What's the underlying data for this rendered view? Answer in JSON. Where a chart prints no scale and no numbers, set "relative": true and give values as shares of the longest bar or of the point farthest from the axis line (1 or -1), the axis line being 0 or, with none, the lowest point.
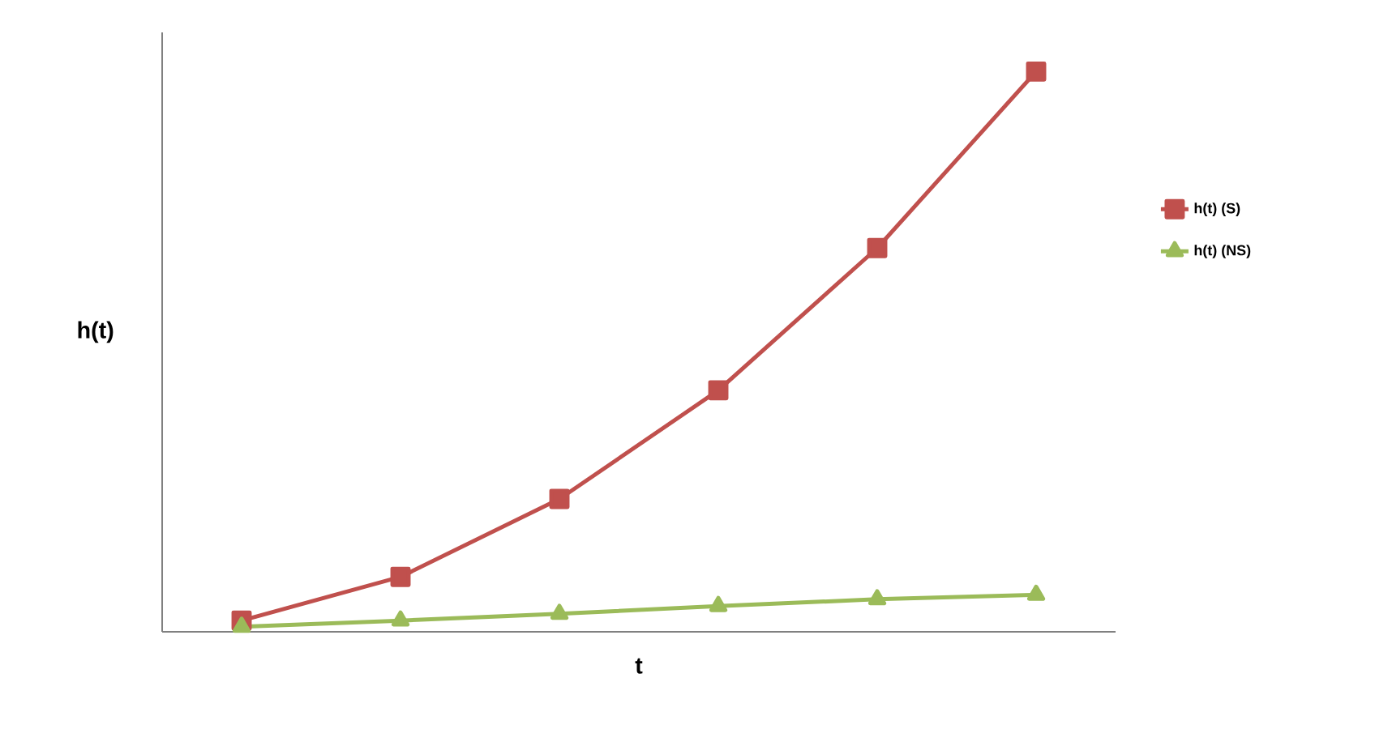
{
  "chart_data": {
    "type": "line",
    "xlabel": "t",
    "ylabel": "h(t)",
    "relative": true,
    "categories": [
      null,
      null,
      null,
      null,
      null,
      null
    ],
    "series": [
      {
        "name": "h(t) (S)",
        "color": "#c0504d",
        "marker": "square",
        "values": [
          0.02,
          0.098,
          0.237,
          0.431,
          0.685,
          1
        ]
      },
      {
        "name": "h(t) (NS)",
        "color": "#9bbb59",
        "marker": "triangle",
        "values": [
          0.009,
          0.02,
          0.032,
          0.046,
          0.058,
          0.066
        ]
      }
    ],
    "grid": false,
    "legend": "right",
    "line_style": "solid"
  }
}
